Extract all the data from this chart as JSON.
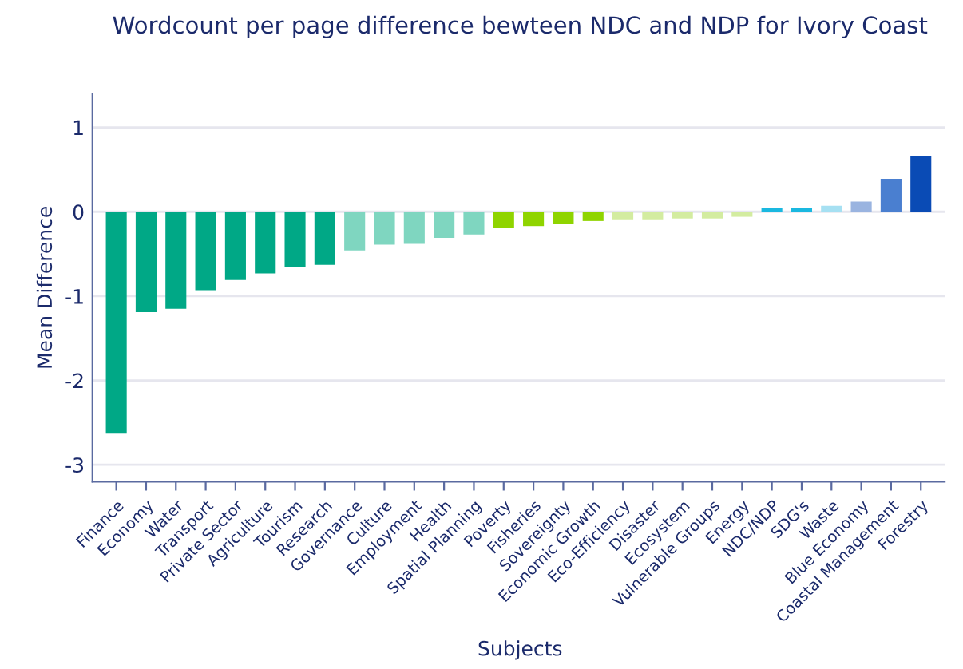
{
  "chart_data": {
    "type": "bar",
    "title": "Wordcount per page difference bewteen NDC and NDP for Ivory Coast",
    "xlabel": "Subjects",
    "ylabel": "Mean Difference",
    "categories": [
      "Finance",
      "Economy",
      "Water",
      "Transport",
      "Private Sector",
      "Agriculture",
      "Tourism",
      "Research",
      "Governance",
      "Culture",
      "Employment",
      "Health",
      "Spatial Planning",
      "Poverty",
      "Fisheries",
      "Sovereignty",
      "Economic Growth",
      "Eco-Efficiency",
      "Disaster",
      "Ecosystem",
      "Vulnerable Groups",
      "Energy",
      "NDC/NDP",
      "SDG's",
      "Waste",
      "Blue Economy",
      "Coastal Management",
      "Forestry"
    ],
    "values": [
      -2.63,
      -1.19,
      -1.15,
      -0.93,
      -0.81,
      -0.73,
      -0.65,
      -0.63,
      -0.46,
      -0.39,
      -0.38,
      -0.31,
      -0.27,
      -0.19,
      -0.17,
      -0.14,
      -0.11,
      -0.09,
      -0.09,
      -0.08,
      -0.08,
      -0.06,
      0.04,
      0.04,
      0.07,
      0.12,
      0.39,
      0.66
    ],
    "colors": [
      "#00a886",
      "#00a886",
      "#00a886",
      "#00a886",
      "#00a886",
      "#00a886",
      "#00a886",
      "#00a886",
      "#7fd6c0",
      "#7fd6c0",
      "#7fd6c0",
      "#7fd6c0",
      "#7fd6c0",
      "#8fd400",
      "#8fd400",
      "#8fd400",
      "#8fd400",
      "#d3eca0",
      "#d3eca0",
      "#d3eca0",
      "#d3eca0",
      "#d3eca0",
      "#1ab8e0",
      "#1ab8e0",
      "#a6e0f2",
      "#9ab4e0",
      "#4a7fd0",
      "#0a4bb5"
    ],
    "ylim": [
      -3.2,
      1.4
    ],
    "yticks": [
      -3,
      -2,
      -1,
      0,
      1
    ],
    "grid": "y",
    "legend": false
  }
}
